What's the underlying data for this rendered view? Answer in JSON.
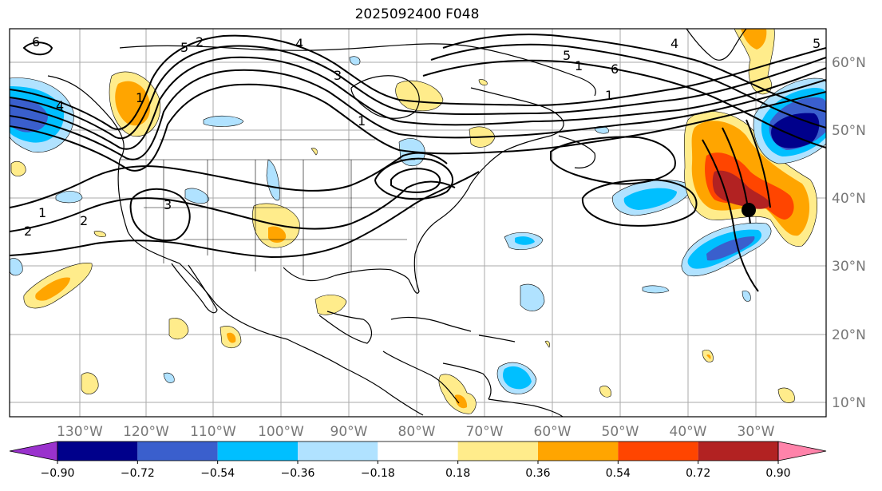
{
  "title": "2025092400 F048",
  "lon_labels": [
    "130°W",
    "120°W",
    "110°W",
    "100°W",
    "90°W",
    "80°W",
    "70°W",
    "60°W",
    "50°W",
    "40°W",
    "30°W"
  ],
  "lat_labels": [
    "60°N",
    "50°N",
    "40°N",
    "30°N",
    "20°N",
    "10°N"
  ],
  "colorbar": {
    "ticks": [
      "−0.90",
      "−0.72",
      "−0.54",
      "−0.36",
      "−0.18",
      "0.18",
      "0.36",
      "0.54",
      "0.72",
      "0.90"
    ],
    "colors": [
      "#9a32cd",
      "#00008b",
      "#3a5fcd",
      "#00bfff",
      "#b0e2ff",
      "#ffffff",
      "#ffec8b",
      "#ffa500",
      "#ff4500",
      "#b22222",
      "#ff83aa"
    ]
  },
  "contour_labels": [
    "6",
    "5",
    "4",
    "3",
    "2",
    "1",
    "1",
    "2",
    "3",
    "4",
    "5",
    "6",
    "1",
    "1",
    "2",
    "1",
    "4",
    "5"
  ],
  "palette": {
    "grid": "#aaaaaa",
    "contour": "#000000",
    "land": "#000000"
  }
}
